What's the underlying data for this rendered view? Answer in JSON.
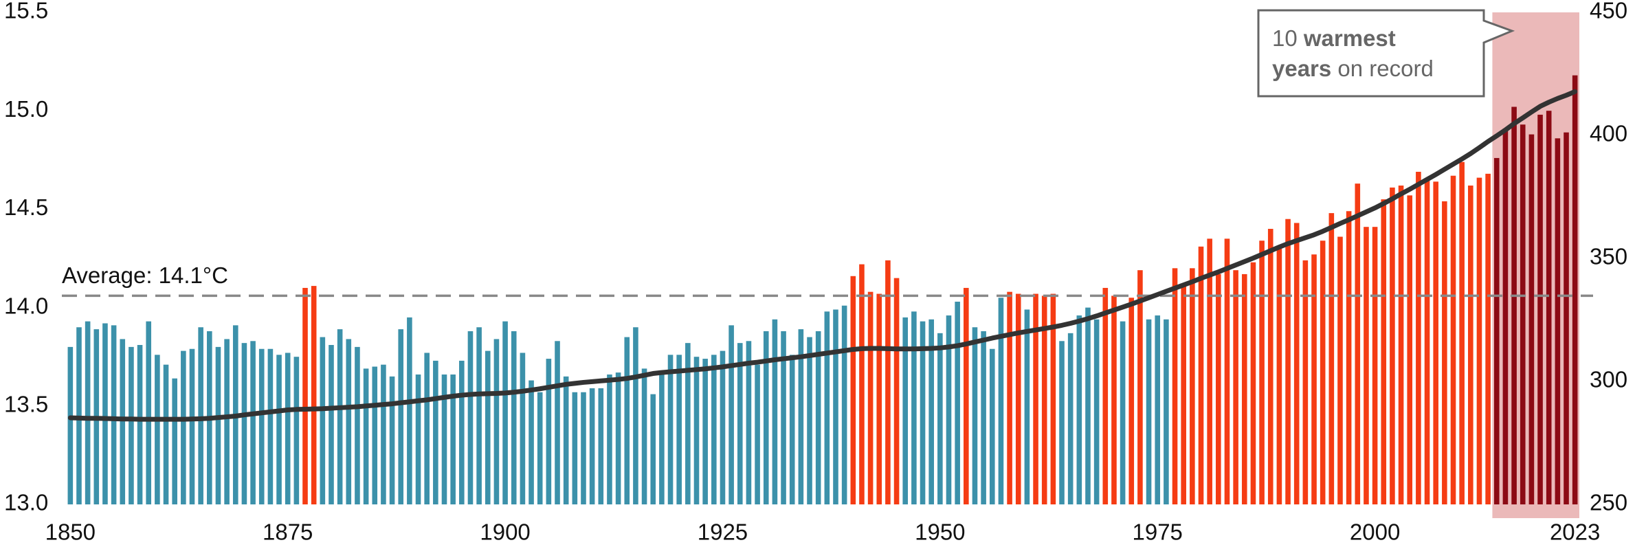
{
  "chart_data": {
    "type": "bar",
    "x": [
      1850,
      1851,
      1852,
      1853,
      1854,
      1855,
      1856,
      1857,
      1858,
      1859,
      1860,
      1861,
      1862,
      1863,
      1864,
      1865,
      1866,
      1867,
      1868,
      1869,
      1870,
      1871,
      1872,
      1873,
      1874,
      1875,
      1876,
      1877,
      1878,
      1879,
      1880,
      1881,
      1882,
      1883,
      1884,
      1885,
      1886,
      1887,
      1888,
      1889,
      1890,
      1891,
      1892,
      1893,
      1894,
      1895,
      1896,
      1897,
      1898,
      1899,
      1900,
      1901,
      1902,
      1903,
      1904,
      1905,
      1906,
      1907,
      1908,
      1909,
      1910,
      1911,
      1912,
      1913,
      1914,
      1915,
      1916,
      1917,
      1918,
      1919,
      1920,
      1921,
      1922,
      1923,
      1924,
      1925,
      1926,
      1927,
      1928,
      1929,
      1930,
      1931,
      1932,
      1933,
      1934,
      1935,
      1936,
      1937,
      1938,
      1939,
      1940,
      1941,
      1942,
      1943,
      1944,
      1945,
      1946,
      1947,
      1948,
      1949,
      1950,
      1951,
      1952,
      1953,
      1954,
      1955,
      1956,
      1957,
      1958,
      1959,
      1960,
      1961,
      1962,
      1963,
      1964,
      1965,
      1966,
      1967,
      1968,
      1969,
      1970,
      1971,
      1972,
      1973,
      1974,
      1975,
      1976,
      1977,
      1978,
      1979,
      1980,
      1981,
      1982,
      1983,
      1984,
      1985,
      1986,
      1987,
      1988,
      1989,
      1990,
      1991,
      1992,
      1993,
      1994,
      1995,
      1996,
      1997,
      1998,
      1999,
      2000,
      2001,
      2002,
      2003,
      2004,
      2005,
      2006,
      2007,
      2008,
      2009,
      2010,
      2011,
      2012,
      2013,
      2014,
      2015,
      2016,
      2017,
      2018,
      2019,
      2020,
      2021,
      2022,
      2023
    ],
    "series": [
      {
        "type": "bar",
        "values": [
          13.8,
          13.9,
          13.93,
          13.89,
          13.92,
          13.91,
          13.84,
          13.8,
          13.81,
          13.93,
          13.76,
          13.71,
          13.64,
          13.78,
          13.79,
          13.9,
          13.88,
          13.8,
          13.84,
          13.91,
          13.82,
          13.83,
          13.79,
          13.79,
          13.76,
          13.77,
          13.75,
          14.1,
          14.11,
          13.85,
          13.81,
          13.89,
          13.84,
          13.8,
          13.69,
          13.7,
          13.71,
          13.65,
          13.89,
          13.95,
          13.66,
          13.77,
          13.73,
          13.66,
          13.66,
          13.73,
          13.88,
          13.9,
          13.78,
          13.84,
          13.93,
          13.88,
          13.77,
          13.63,
          13.57,
          13.74,
          13.83,
          13.65,
          13.57,
          13.57,
          13.59,
          13.59,
          13.66,
          13.67,
          13.85,
          13.9,
          13.69,
          13.56,
          13.68,
          13.76,
          13.76,
          13.82,
          13.75,
          13.74,
          13.76,
          13.78,
          13.91,
          13.82,
          13.83,
          13.71,
          13.88,
          13.94,
          13.88,
          13.76,
          13.89,
          13.85,
          13.88,
          13.98,
          13.99,
          14.01,
          14.16,
          14.22,
          14.08,
          14.07,
          14.24,
          14.15,
          13.95,
          13.98,
          13.93,
          13.94,
          13.87,
          13.96,
          14.03,
          14.1,
          13.9,
          13.88,
          13.79,
          14.05,
          14.08,
          14.07,
          13.99,
          14.07,
          14.06,
          14.07,
          13.83,
          13.87,
          13.96,
          14.0,
          13.94,
          14.1,
          14.06,
          13.93,
          14.05,
          14.19,
          13.94,
          13.96,
          13.94,
          14.2,
          14.11,
          14.2,
          14.31,
          14.35,
          14.17,
          14.35,
          14.19,
          14.17,
          14.23,
          14.34,
          14.4,
          14.3,
          14.45,
          14.43,
          14.24,
          14.27,
          14.34,
          14.48,
          14.36,
          14.49,
          14.63,
          14.41,
          14.41,
          14.55,
          14.61,
          14.62,
          14.57,
          14.69,
          14.65,
          14.64,
          14.54,
          14.67,
          14.74,
          14.62,
          14.66,
          14.68,
          14.76,
          14.91,
          15.02,
          14.93,
          14.88,
          14.98,
          15.0,
          14.86,
          14.89,
          15.18
        ],
        "colors": [
          "#3c91aa",
          "#3c91aa",
          "#3c91aa",
          "#3c91aa",
          "#3c91aa",
          "#3c91aa",
          "#3c91aa",
          "#3c91aa",
          "#3c91aa",
          "#3c91aa",
          "#3c91aa",
          "#3c91aa",
          "#3c91aa",
          "#3c91aa",
          "#3c91aa",
          "#3c91aa",
          "#3c91aa",
          "#3c91aa",
          "#3c91aa",
          "#3c91aa",
          "#3c91aa",
          "#3c91aa",
          "#3c91aa",
          "#3c91aa",
          "#3c91aa",
          "#3c91aa",
          "#3c91aa",
          "#f53c14",
          "#f53c14",
          "#3c91aa",
          "#3c91aa",
          "#3c91aa",
          "#3c91aa",
          "#3c91aa",
          "#3c91aa",
          "#3c91aa",
          "#3c91aa",
          "#3c91aa",
          "#3c91aa",
          "#3c91aa",
          "#3c91aa",
          "#3c91aa",
          "#3c91aa",
          "#3c91aa",
          "#3c91aa",
          "#3c91aa",
          "#3c91aa",
          "#3c91aa",
          "#3c91aa",
          "#3c91aa",
          "#3c91aa",
          "#3c91aa",
          "#3c91aa",
          "#3c91aa",
          "#3c91aa",
          "#3c91aa",
          "#3c91aa",
          "#3c91aa",
          "#3c91aa",
          "#3c91aa",
          "#3c91aa",
          "#3c91aa",
          "#3c91aa",
          "#3c91aa",
          "#3c91aa",
          "#3c91aa",
          "#3c91aa",
          "#3c91aa",
          "#3c91aa",
          "#3c91aa",
          "#3c91aa",
          "#3c91aa",
          "#3c91aa",
          "#3c91aa",
          "#3c91aa",
          "#3c91aa",
          "#3c91aa",
          "#3c91aa",
          "#3c91aa",
          "#3c91aa",
          "#3c91aa",
          "#3c91aa",
          "#3c91aa",
          "#3c91aa",
          "#3c91aa",
          "#3c91aa",
          "#3c91aa",
          "#3c91aa",
          "#3c91aa",
          "#3c91aa",
          "#f53c14",
          "#f53c14",
          "#f53c14",
          "#f53c14",
          "#f53c14",
          "#f53c14",
          "#3c91aa",
          "#3c91aa",
          "#3c91aa",
          "#3c91aa",
          "#3c91aa",
          "#3c91aa",
          "#3c91aa",
          "#f53c14",
          "#3c91aa",
          "#3c91aa",
          "#3c91aa",
          "#3c91aa",
          "#f53c14",
          "#f53c14",
          "#3c91aa",
          "#f53c14",
          "#f53c14",
          "#f53c14",
          "#3c91aa",
          "#3c91aa",
          "#3c91aa",
          "#3c91aa",
          "#3c91aa",
          "#f53c14",
          "#f53c14",
          "#3c91aa",
          "#f53c14",
          "#f53c14",
          "#3c91aa",
          "#3c91aa",
          "#3c91aa",
          "#f53c14",
          "#f53c14",
          "#f53c14",
          "#f53c14",
          "#f53c14",
          "#f53c14",
          "#f53c14",
          "#f53c14",
          "#f53c14",
          "#f53c14",
          "#f53c14",
          "#f53c14",
          "#f53c14",
          "#f53c14",
          "#f53c14",
          "#f53c14",
          "#f53c14",
          "#f53c14",
          "#f53c14",
          "#f53c14",
          "#f53c14",
          "#f53c14",
          "#f53c14",
          "#f53c14",
          "#f53c14",
          "#f53c14",
          "#f53c14",
          "#f53c14",
          "#f53c14",
          "#f53c14",
          "#f53c14",
          "#f53c14",
          "#f53c14",
          "#f53c14",
          "#f53c14",
          "#f53c14",
          "#f53c14",
          "#8c0a14",
          "#8c0a14",
          "#8c0a14",
          "#8c0a14",
          "#8c0a14",
          "#8c0a14",
          "#8c0a14",
          "#8c0a14",
          "#8c0a14",
          "#8c0a14"
        ]
      },
      {
        "type": "line",
        "axis": "y2",
        "color": "#333333",
        "values": [
          285.2,
          285.1,
          285.0,
          285.0,
          284.9,
          284.8,
          284.7,
          284.7,
          284.6,
          284.6,
          284.6,
          284.6,
          284.6,
          284.6,
          284.7,
          284.8,
          285.0,
          285.3,
          285.6,
          285.9,
          286.4,
          286.8,
          287.2,
          287.6,
          288.0,
          288.4,
          288.6,
          288.7,
          288.8,
          288.9,
          289.1,
          289.3,
          289.5,
          289.7,
          290.0,
          290.3,
          290.6,
          290.9,
          291.3,
          291.7,
          292.1,
          292.5,
          293.0,
          293.5,
          294.0,
          294.4,
          294.7,
          294.9,
          295.0,
          295.1,
          295.3,
          295.6,
          296.0,
          296.5,
          297.0,
          297.6,
          298.2,
          298.8,
          299.2,
          299.6,
          299.9,
          300.2,
          300.5,
          300.8,
          301.2,
          301.8,
          302.5,
          303.2,
          303.6,
          303.9,
          304.2,
          304.5,
          304.8,
          305.1,
          305.5,
          305.9,
          306.4,
          306.9,
          307.4,
          307.8,
          308.3,
          308.8,
          309.2,
          309.6,
          310.0,
          310.5,
          311.0,
          311.5,
          312.0,
          312.5,
          313.0,
          313.3,
          313.4,
          313.4,
          313.3,
          313.2,
          313.2,
          313.2,
          313.3,
          313.4,
          313.6,
          314.0,
          314.5,
          315.2,
          316.0,
          316.8,
          317.6,
          318.3,
          319.0,
          319.7,
          320.3,
          320.9,
          321.5,
          322.1,
          322.8,
          323.6,
          324.5,
          325.5,
          326.6,
          327.8,
          329.0,
          330.2,
          331.4,
          332.7,
          334.0,
          335.3,
          336.6,
          337.9,
          339.2,
          340.5,
          341.9,
          343.2,
          344.5,
          345.9,
          347.3,
          348.7,
          350.1,
          351.6,
          353.1,
          354.6,
          356.0,
          357.2,
          358.4,
          359.6,
          361.0,
          362.6,
          364.2,
          365.7,
          367.3,
          368.9,
          370.5,
          372.3,
          374.2,
          376.2,
          378.1,
          380.1,
          382.1,
          384.1,
          386.2,
          388.3,
          390.4,
          392.6,
          395.0,
          397.5,
          399.8,
          402.2,
          404.8,
          407.1,
          409.5,
          411.8,
          413.5,
          415.0,
          416.3,
          417.8
        ]
      }
    ],
    "xlim": [
      1849.5,
      2023.5
    ],
    "xticks": [
      1850,
      1875,
      1900,
      1925,
      1950,
      1975,
      2000,
      2023
    ],
    "ylim": [
      13.0,
      15.5
    ],
    "yticks": [
      {
        "value": 13,
        "label": "13.0"
      },
      13.5,
      {
        "value": 14,
        "label": "14.0"
      },
      14.5,
      {
        "value": 15,
        "label": "15.0"
      },
      15.5
    ],
    "y2lim": [
      250,
      450
    ],
    "y2ticks": [
      250,
      300,
      350,
      400,
      450
    ],
    "reference_line": {
      "value": 14.06,
      "label": "Average: 14.1°C",
      "color": "#888888",
      "dashed": true
    },
    "highlight": {
      "x": [
        2014,
        2023
      ],
      "color": "#ebb9b9"
    },
    "annotation": {
      "lines": [
        [
          {
            "text": "10 ",
            "bold": false
          },
          {
            "text": "warmest",
            "bold": true
          }
        ],
        [
          {
            "text": "years",
            "bold": true
          },
          {
            "text": " on record",
            "bold": false
          }
        ]
      ],
      "color": "#666666"
    },
    "grid": false
  }
}
